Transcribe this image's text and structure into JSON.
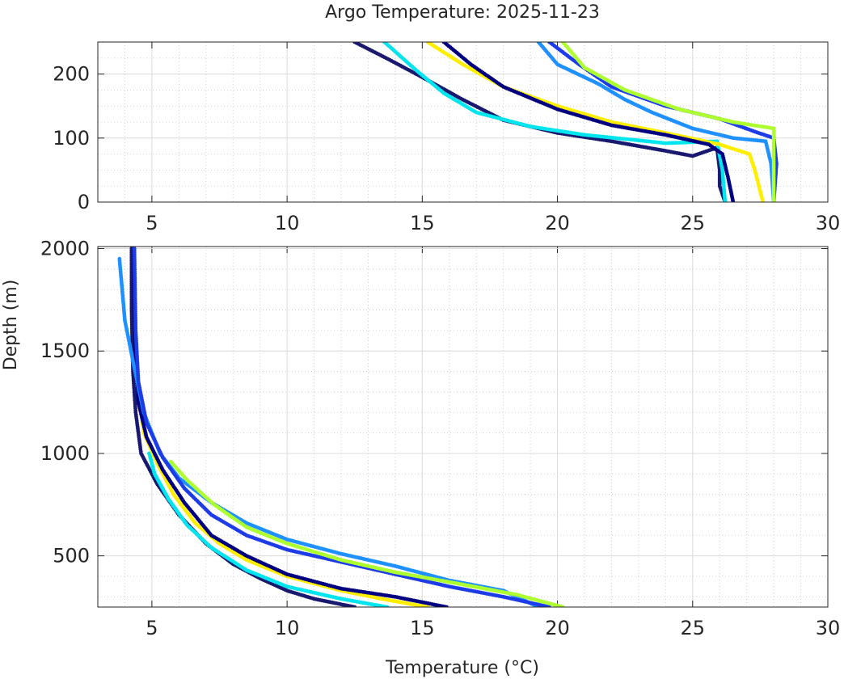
{
  "chart_data": {
    "type": "scatter",
    "title": "Argo Temperature: 2025-11-23",
    "xlabel": "Temperature (°C)",
    "ylabel": "Depth (m)",
    "grid": true,
    "legend": "none",
    "panels": [
      {
        "xlim": [
          3,
          30
        ],
        "ylim": [
          250,
          0
        ],
        "xticks": [
          "5",
          "10",
          "15",
          "20",
          "25",
          "30"
        ],
        "yticks": [
          "0",
          "100",
          "200"
        ],
        "series": [
          {
            "color": "#191970",
            "points": [
              [
                26.2,
                0
              ],
              [
                26.0,
                25
              ],
              [
                26.0,
                50
              ],
              [
                25.9,
                85
              ],
              [
                25.0,
                72
              ],
              [
                24.0,
                80
              ],
              [
                22.0,
                95
              ],
              [
                20.0,
                108
              ],
              [
                18.0,
                128
              ],
              [
                16.5,
                160
              ],
              [
                15.0,
                195
              ],
              [
                13.8,
                222
              ],
              [
                12.5,
                250
              ]
            ]
          },
          {
            "color": "#00e5ee",
            "points": [
              [
                26.2,
                0
              ],
              [
                26.1,
                50
              ],
              [
                25.9,
                95
              ],
              [
                24.0,
                92
              ],
              [
                21.0,
                105
              ],
              [
                19.0,
                118
              ],
              [
                17.0,
                140
              ],
              [
                15.8,
                170
              ],
              [
                14.8,
                205
              ],
              [
                14.0,
                235
              ],
              [
                13.6,
                250
              ]
            ]
          },
          {
            "color": "#ffee00",
            "points": [
              [
                27.6,
                0
              ],
              [
                27.3,
                50
              ],
              [
                27.1,
                75
              ],
              [
                26.0,
                90
              ],
              [
                24.0,
                108
              ],
              [
                22.0,
                125
              ],
              [
                20.0,
                150
              ],
              [
                18.0,
                180
              ],
              [
                16.5,
                215
              ],
              [
                15.2,
                250
              ]
            ]
          },
          {
            "color": "#000080",
            "points": [
              [
                26.5,
                0
              ],
              [
                26.3,
                40
              ],
              [
                26.1,
                75
              ],
              [
                25.6,
                90
              ],
              [
                24.0,
                105
              ],
              [
                22.0,
                120
              ],
              [
                20.0,
                145
              ],
              [
                18.0,
                180
              ],
              [
                16.8,
                215
              ],
              [
                15.8,
                250
              ]
            ]
          },
          {
            "color": "#1e90ff",
            "points": [
              [
                28.0,
                0
              ],
              [
                27.9,
                60
              ],
              [
                27.7,
                95
              ],
              [
                26.5,
                100
              ],
              [
                25.0,
                115
              ],
              [
                23.5,
                140
              ],
              [
                22.5,
                160
              ],
              [
                21.5,
                185
              ],
              [
                20.0,
                215
              ],
              [
                19.3,
                250
              ]
            ]
          },
          {
            "color": "#1d3ce8",
            "points": [
              [
                28.0,
                0
              ],
              [
                28.1,
                60
              ],
              [
                28.0,
                100
              ],
              [
                27.3,
                110
              ],
              [
                26.0,
                130
              ],
              [
                24.0,
                150
              ],
              [
                22.0,
                180
              ],
              [
                20.8,
                215
              ],
              [
                19.7,
                250
              ]
            ]
          },
          {
            "color": "#adff2f",
            "points": [
              [
                28.0,
                0
              ],
              [
                28.0,
                60
              ],
              [
                28.0,
                115
              ],
              [
                26.5,
                125
              ],
              [
                24.5,
                145
              ],
              [
                22.5,
                175
              ],
              [
                21.0,
                210
              ],
              [
                20.2,
                250
              ]
            ]
          }
        ]
      },
      {
        "xlim": [
          3,
          30
        ],
        "ylim": [
          2010,
          250
        ],
        "xticks": [
          "5",
          "10",
          "15",
          "20",
          "25",
          "30"
        ],
        "yticks": [
          "500",
          "1000",
          "1500",
          "2000"
        ],
        "series": [
          {
            "color": "#191970",
            "points": [
              [
                12.5,
                250
              ],
              [
                11.0,
                290
              ],
              [
                10.0,
                330
              ],
              [
                9.0,
                390
              ],
              [
                8.0,
                460
              ],
              [
                7.0,
                560
              ],
              [
                6.0,
                700
              ],
              [
                5.2,
                850
              ],
              [
                4.6,
                1000
              ],
              [
                4.4,
                1200
              ],
              [
                4.3,
                1400
              ],
              [
                4.25,
                1700
              ],
              [
                4.25,
                2000
              ]
            ]
          },
          {
            "color": "#00e5ee",
            "points": [
              [
                13.7,
                250
              ],
              [
                12.0,
                290
              ],
              [
                10.0,
                350
              ],
              [
                8.5,
                430
              ],
              [
                7.2,
                540
              ],
              [
                6.3,
                650
              ],
              [
                5.6,
                780
              ],
              [
                5.1,
                900
              ],
              [
                4.9,
                1000
              ]
            ]
          },
          {
            "color": "#ffee00",
            "points": [
              [
                15.2,
                250
              ],
              [
                13.5,
                290
              ],
              [
                12.0,
                330
              ],
              [
                10.0,
                400
              ],
              [
                8.5,
                480
              ],
              [
                7.5,
                560
              ],
              [
                6.6,
                660
              ],
              [
                5.8,
                800
              ],
              [
                5.2,
                950
              ],
              [
                4.7,
                1100
              ],
              [
                4.5,
                1300
              ]
            ]
          },
          {
            "color": "#000080",
            "points": [
              [
                15.9,
                250
              ],
              [
                14.0,
                300
              ],
              [
                12.0,
                340
              ],
              [
                10.0,
                410
              ],
              [
                8.5,
                500
              ],
              [
                7.2,
                600
              ],
              [
                6.2,
                760
              ],
              [
                5.4,
                920
              ],
              [
                4.8,
                1080
              ],
              [
                4.5,
                1250
              ],
              [
                4.4,
                1500
              ],
              [
                4.35,
                1800
              ],
              [
                4.35,
                2000
              ]
            ]
          },
          {
            "color": "#1e90ff",
            "points": [
              [
                19.3,
                250
              ],
              [
                18.0,
                330
              ],
              [
                16.0,
                380
              ],
              [
                14.0,
                450
              ],
              [
                12.0,
                510
              ],
              [
                10.0,
                580
              ],
              [
                8.5,
                660
              ],
              [
                7.2,
                760
              ],
              [
                6.0,
                880
              ],
              [
                5.3,
                1000
              ],
              [
                4.7,
                1200
              ],
              [
                4.3,
                1450
              ],
              [
                4.0,
                1650
              ],
              [
                3.8,
                1950
              ]
            ]
          },
          {
            "color": "#1d3ce8",
            "points": [
              [
                19.7,
                250
              ],
              [
                18.0,
                300
              ],
              [
                16.0,
                350
              ],
              [
                14.0,
                410
              ],
              [
                12.0,
                470
              ],
              [
                10.0,
                530
              ],
              [
                8.5,
                600
              ],
              [
                7.2,
                700
              ],
              [
                6.2,
                830
              ],
              [
                5.4,
                980
              ],
              [
                4.8,
                1150
              ],
              [
                4.5,
                1350
              ],
              [
                4.4,
                1600
              ],
              [
                4.35,
                2000
              ]
            ]
          },
          {
            "color": "#adff2f",
            "points": [
              [
                20.2,
                250
              ],
              [
                18.5,
                310
              ],
              [
                16.5,
                360
              ],
              [
                14.0,
                420
              ],
              [
                12.0,
                480
              ],
              [
                10.0,
                560
              ],
              [
                8.5,
                640
              ],
              [
                7.3,
                750
              ],
              [
                6.3,
                870
              ],
              [
                5.7,
                960
              ]
            ]
          }
        ]
      }
    ]
  }
}
